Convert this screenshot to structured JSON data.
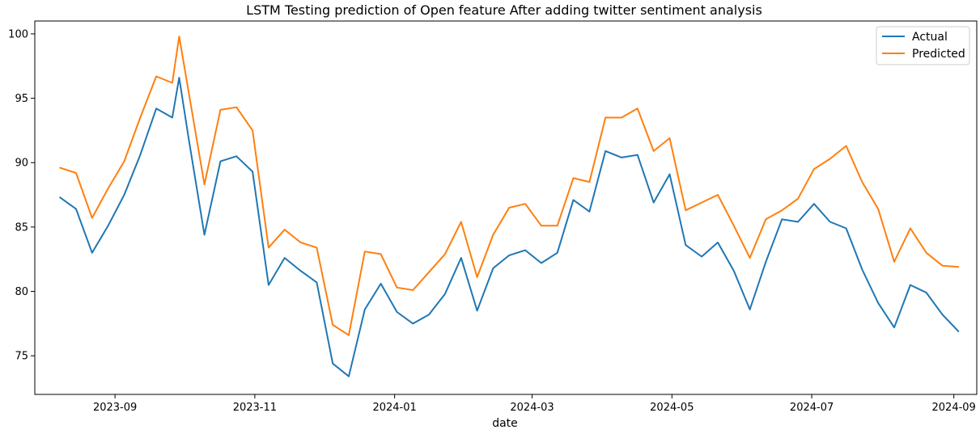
{
  "chart_data": {
    "type": "line",
    "title": "LSTM Testing prediction of Open feature After adding twitter sentiment analysis",
    "xlabel": "date",
    "ylabel": "",
    "xlim": [
      "2023-07-28",
      "2024-09-11"
    ],
    "ylim": [
      72,
      101
    ],
    "x_ticks": [
      {
        "date": "2023-09-01",
        "label": "2023-09"
      },
      {
        "date": "2023-11-01",
        "label": "2023-11"
      },
      {
        "date": "2024-01-01",
        "label": "2024-01"
      },
      {
        "date": "2024-03-01",
        "label": "2024-03"
      },
      {
        "date": "2024-05-01",
        "label": "2024-05"
      },
      {
        "date": "2024-07-01",
        "label": "2024-07"
      },
      {
        "date": "2024-09-01",
        "label": "2024-09"
      }
    ],
    "y_ticks": [
      75,
      80,
      85,
      90,
      95,
      100
    ],
    "grid": false,
    "legend_position": "top-right",
    "x": [
      "2023-08-08",
      "2023-08-15",
      "2023-08-22",
      "2023-08-29",
      "2023-09-05",
      "2023-09-12",
      "2023-09-19",
      "2023-09-26",
      "2023-09-29",
      "2023-10-03",
      "2023-10-10",
      "2023-10-17",
      "2023-10-24",
      "2023-10-31",
      "2023-11-07",
      "2023-11-14",
      "2023-11-21",
      "2023-11-28",
      "2023-12-05",
      "2023-12-12",
      "2023-12-19",
      "2023-12-26",
      "2024-01-02",
      "2024-01-09",
      "2024-01-16",
      "2024-01-23",
      "2024-01-30",
      "2024-02-06",
      "2024-02-13",
      "2024-02-20",
      "2024-02-27",
      "2024-03-05",
      "2024-03-12",
      "2024-03-19",
      "2024-03-26",
      "2024-04-02",
      "2024-04-09",
      "2024-04-16",
      "2024-04-23",
      "2024-04-30",
      "2024-05-07",
      "2024-05-14",
      "2024-05-21",
      "2024-05-28",
      "2024-06-04",
      "2024-06-11",
      "2024-06-18",
      "2024-06-25",
      "2024-07-02",
      "2024-07-09",
      "2024-07-16",
      "2024-07-23",
      "2024-07-30",
      "2024-08-06",
      "2024-08-13",
      "2024-08-20",
      "2024-08-27",
      "2024-09-03"
    ],
    "series": [
      {
        "name": "Actual",
        "color": "#1f77b4",
        "values": [
          87.3,
          86.4,
          83.0,
          85.1,
          87.5,
          90.6,
          94.2,
          93.5,
          96.6,
          92.0,
          84.4,
          90.1,
          90.5,
          89.3,
          80.5,
          82.6,
          81.6,
          80.7,
          74.4,
          73.4,
          78.6,
          80.6,
          78.4,
          77.5,
          78.2,
          79.8,
          82.6,
          78.5,
          81.8,
          82.8,
          83.2,
          82.2,
          83.0,
          87.1,
          86.2,
          90.9,
          90.4,
          90.6,
          86.9,
          89.1,
          83.6,
          82.7,
          83.8,
          81.6,
          78.6,
          82.3,
          85.6,
          85.4,
          86.8,
          85.4,
          84.9,
          81.7,
          79.1,
          77.2,
          80.5,
          79.9,
          78.2,
          76.9
        ]
      },
      {
        "name": "Predicted",
        "color": "#ff7f0e",
        "values": [
          89.6,
          89.2,
          85.7,
          88.0,
          90.1,
          93.5,
          96.7,
          96.2,
          99.8,
          95.6,
          88.3,
          94.1,
          94.3,
          92.5,
          83.4,
          84.8,
          83.8,
          83.4,
          77.4,
          76.6,
          83.1,
          82.9,
          80.3,
          80.1,
          81.5,
          82.9,
          85.4,
          81.1,
          84.4,
          86.5,
          86.8,
          85.1,
          85.1,
          88.8,
          88.5,
          93.5,
          93.5,
          94.2,
          90.9,
          91.9,
          86.3,
          86.9,
          87.5,
          85.1,
          82.6,
          85.6,
          86.3,
          87.2,
          89.5,
          90.3,
          91.3,
          88.5,
          86.4,
          82.3,
          84.9,
          83.0,
          82.0,
          81.9
        ]
      }
    ]
  }
}
